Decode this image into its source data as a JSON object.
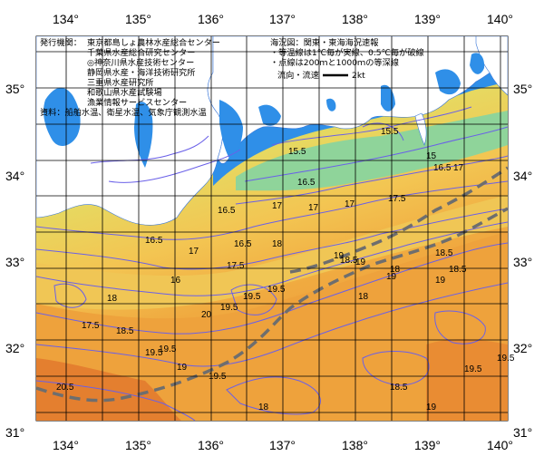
{
  "axes": {
    "lon_labels": [
      "134°",
      "135°",
      "136°",
      "137°",
      "138°",
      "139°",
      "140°"
    ],
    "lat_labels": [
      "35°",
      "34°",
      "33°",
      "32°",
      "31°"
    ]
  },
  "publisher": {
    "heading": "発行機関：",
    "orgs": [
      "東京都島しょ農林水産総合センター",
      "千葉県水産総合研究センター",
      "◎神奈川県水産技術センター",
      "静岡県水産・海洋技術研究所",
      "三重県水産研究所",
      "和歌山県水産試験場",
      "漁業情報サービスセンター"
    ],
    "sources": "資料：船舶水温、衛星水温、気象庁観測水温"
  },
  "legend": {
    "sea_area": "海況図：関東・東海海況速報",
    "isotherm_note": "・等温線は1℃毎が実線、0.5℃毎が破線",
    "isobath_note": "・点線は200ｍと1000ｍの等深線",
    "current_label": "流向・流速",
    "current_scale": "2kt"
  },
  "isotherm_labels": [
    "15.5",
    "15.5",
    "15",
    "16.5",
    "17",
    "16.5",
    "17",
    "17",
    "17",
    "17.5",
    "16.5",
    "16.5",
    "16.5",
    "17",
    "16",
    "17.5",
    "18",
    "18",
    "18.5",
    "18",
    "18.5",
    "19",
    "19",
    "19",
    "18",
    "18.5",
    "17.5",
    "19.5",
    "19.5",
    "19.5",
    "20",
    "19",
    "18.5",
    "19",
    "19.5",
    "20.5",
    "18",
    "19",
    "18.5",
    "19.5",
    "19.5",
    "19.5",
    "19.5"
  ],
  "colors": {
    "land": "#ffffff",
    "lake": "#2f8fe8",
    "coast_cold": "#6aa0e4",
    "sea_green": "#8fd078",
    "sea_yellow": "#f2cc58",
    "sea_orange": "#efa23a",
    "sea_warm": "#e47e2e",
    "isotherm_line": "#6a60e8",
    "kuroshio_axis": "#6e6e6e",
    "grid": "#000000"
  }
}
